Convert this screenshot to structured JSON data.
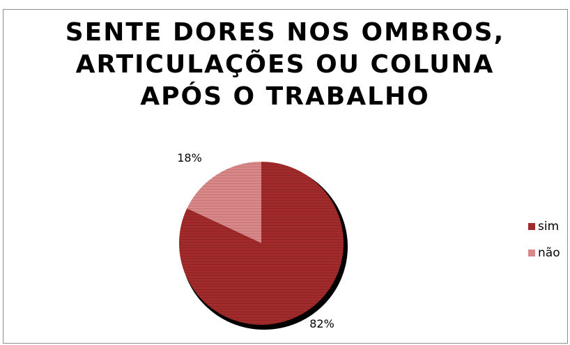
{
  "chart_data": {
    "type": "pie",
    "title_lines": [
      "SENTE DORES NOS OMBROS,",
      "ARTICULAÇÕES OU COLUNA",
      "APÓS O TRABALHO"
    ],
    "slices": [
      {
        "label": "sim",
        "value": 82,
        "data_label": "82%",
        "color": "#a12a2a"
      },
      {
        "label": "não",
        "value": 18,
        "data_label": "18%",
        "color": "#d88888"
      }
    ],
    "legend_position": "right",
    "shadow_color": "#000000"
  }
}
